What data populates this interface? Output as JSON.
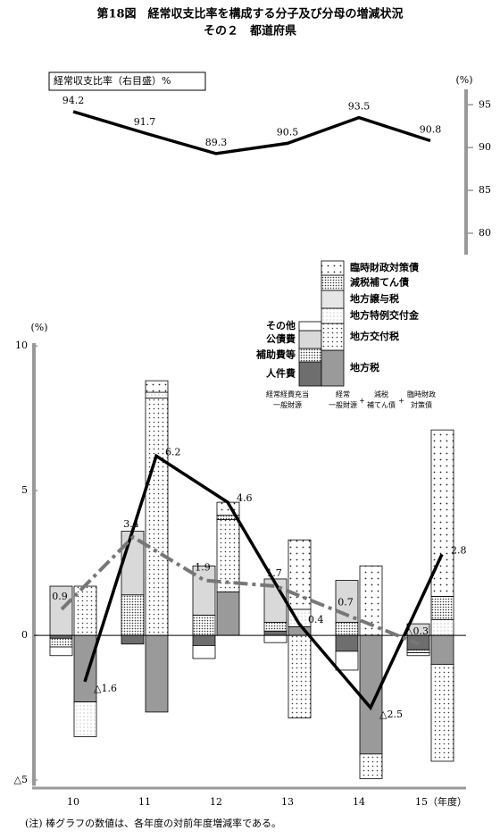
{
  "title": [
    "第18図　経常収支比率を構成する分子及び分母の増減状況",
    "その２　都道府県"
  ],
  "note": "(注)  棒グラフの数値は、各年度の対前年度増減率である。",
  "chart_data": [
    {
      "type": "line",
      "legend_label": "経常収支比率（右目盛）%",
      "y_unit": "(%)",
      "values": [
        94.2,
        91.7,
        89.3,
        90.5,
        93.5,
        90.8
      ],
      "color": "#000000",
      "ylim": [
        77.5,
        96.8
      ],
      "yticks": [
        80,
        85,
        90,
        95
      ]
    },
    {
      "type": "combo",
      "y_unit": "(%)",
      "categories": [
        "10",
        "11",
        "12",
        "13",
        "14",
        "15（年度）"
      ],
      "ylim": [
        -5.2,
        10.1
      ],
      "yticks": [
        10,
        5,
        0,
        {
          "value": -5,
          "label": "△5"
        }
      ],
      "operator": "+",
      "bar_groups": [
        {
          "labels": [
            [
              "経常経費充当",
              "一般財源"
            ]
          ],
          "series": [
            {
              "name": "人件費",
              "color": "#6e6e6e",
              "values": [
                -0.1,
                -0.3,
                -0.35,
                0.15,
                -0.55,
                -0.5
              ]
            },
            {
              "name": "補助費等",
              "color": "#ffffff",
              "pattern": "dots-dense",
              "values": [
                -0.3,
                1.4,
                0.7,
                0.3,
                0.45,
                -0.1
              ]
            },
            {
              "name": "公債費",
              "color": "#d9d9d9",
              "values": [
                1.7,
                2.2,
                1.7,
                1.5,
                1.45,
                0.4
              ]
            },
            {
              "name": "その他",
              "color": "#ffffff",
              "values": [
                -0.3,
                0.0,
                -0.45,
                -0.25,
                -0.65,
                -0.1
              ]
            }
          ]
        },
        {
          "labels": [
            [
              "経常",
              "一般財源"
            ],
            [
              "減税",
              "補てん債"
            ],
            [
              "臨時財政",
              "対策債"
            ]
          ],
          "series": [
            {
              "name": "地方税",
              "color": "#9a9a9a",
              "values": [
                -2.3,
                -2.65,
                1.5,
                0.3,
                -4.1,
                -1.0
              ]
            },
            {
              "name": "地方交付税",
              "color": "#ffffff",
              "pattern": "dots-medium",
              "values": [
                1.7,
                8.2,
                2.5,
                -2.85,
                -0.85,
                -3.35
              ]
            },
            {
              "name": "地方特例交付金",
              "color": "#ffffff",
              "pattern": "dots-fine",
              "values": [
                -1.2,
                0.2,
                0.0,
                0.6,
                0.0,
                0.55
              ]
            },
            {
              "name": "地方譲与税",
              "color": "#e6e6e6",
              "values": [
                0.0,
                0.0,
                0.0,
                0.0,
                0.0,
                0.0
              ]
            },
            {
              "name": "減税補てん債",
              "color": "#ffffff",
              "pattern": "dots-dense",
              "values": [
                0.0,
                0.0,
                0.15,
                0.0,
                0.0,
                0.8
              ]
            },
            {
              "name": "臨時財政対策債",
              "color": "#ffffff",
              "pattern": "dots-sparse",
              "values": [
                0.0,
                0.4,
                0.45,
                2.4,
                2.4,
                5.75
              ]
            }
          ]
        }
      ],
      "lines": [
        {
          "color": "#000000",
          "dash": "solid",
          "values": [
            -1.6,
            6.2,
            4.6,
            0.4,
            -2.5,
            2.8
          ],
          "value_labels": [
            "△1.6",
            "6.2",
            "4.6",
            "0.4",
            "△2.5",
            "2.8"
          ]
        },
        {
          "color": "#777777",
          "dash": "dash-dot",
          "values": [
            0.9,
            3.4,
            1.9,
            1.7,
            0.7,
            -0.3
          ],
          "value_labels": [
            "0.9",
            "3.4",
            "1.9",
            "1.7",
            "0.7",
            "△0.3"
          ]
        }
      ]
    }
  ]
}
